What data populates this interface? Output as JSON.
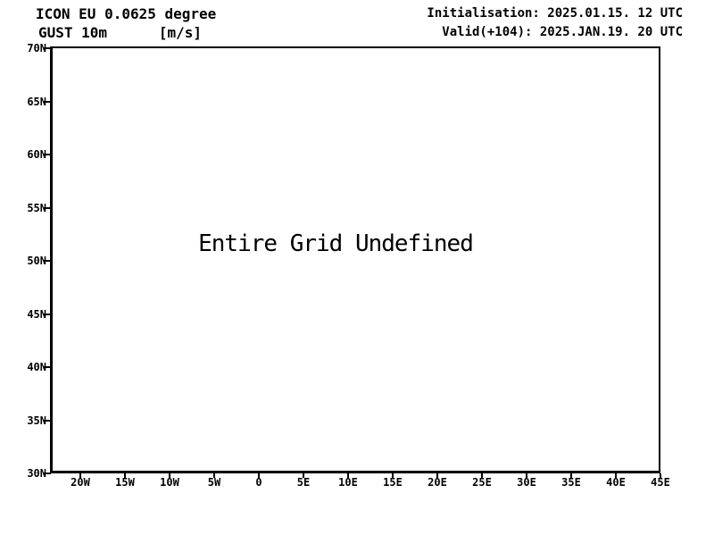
{
  "page": {
    "background_color": "#ffffff",
    "foreground_color": "#000000"
  },
  "header": {
    "model_line": "ICON EU 0.0625 degree",
    "param_line": "GUST 10m      [m/s]",
    "init_line": "Initialisation: 2025.01.15. 12 UTC",
    "valid_line": "Valid(+104): 2025.JAN.19. 20 UTC"
  },
  "chart_data": {
    "type": "map",
    "title": "ICON EU 0.0625 degree",
    "subtitle": "GUST 10m [m/s]",
    "variable": "GUST 10m",
    "units": "m/s",
    "initialisation": "2025.01.15. 12 UTC",
    "forecast_offset": "+104",
    "valid": "2025.JAN.19. 20 UTC",
    "x_tick_labels": [
      "20W",
      "15W",
      "10W",
      "5W",
      "0",
      "5E",
      "10E",
      "15E",
      "20E",
      "25E",
      "30E",
      "35E",
      "40E",
      "45E"
    ],
    "y_tick_labels": [
      "70N",
      "65N",
      "60N",
      "55N",
      "50N",
      "45N",
      "40N",
      "35N",
      "30N"
    ],
    "series": [],
    "annotation": "Entire Grid Undefined",
    "grid": false,
    "legend": false,
    "axis_color": "#000000",
    "plot_background": "#ffffff"
  }
}
